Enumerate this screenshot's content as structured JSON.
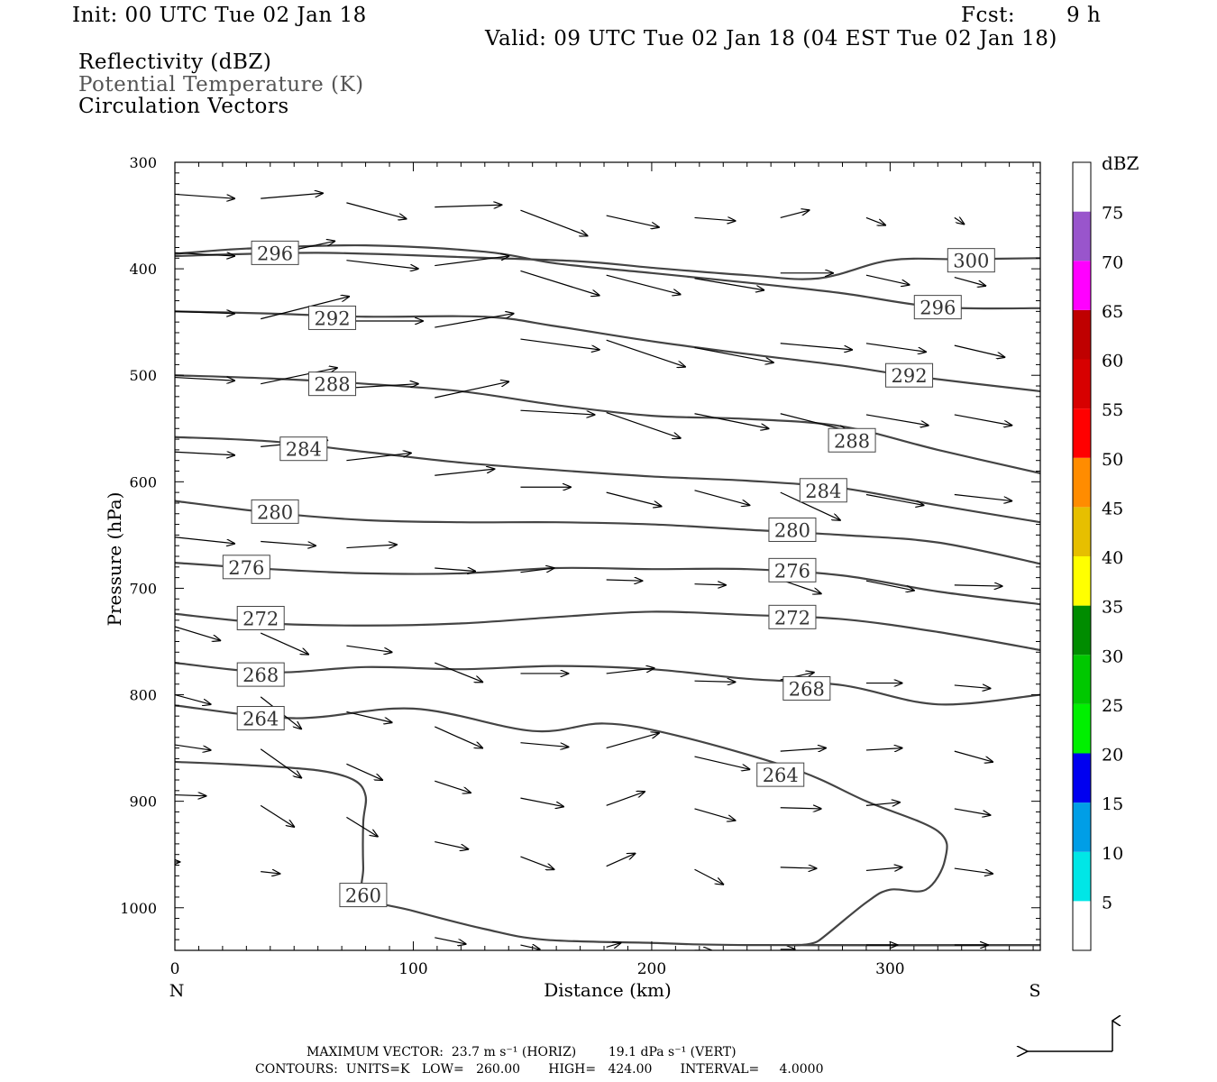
{
  "header": {
    "init": "Init: 00 UTC Tue 02 Jan 18",
    "fcst_label": "Fcst:",
    "fcst_value": "9 h",
    "valid": "Valid: 09 UTC Tue 02 Jan 18 (04 EST Tue 02 Jan 18)",
    "field1": "Reflectivity (dBZ)",
    "field2": "Potential Temperature (K)",
    "field3": "Circulation Vectors"
  },
  "chart_data": {
    "type": "cross-section",
    "xlabel": "Distance (km)",
    "ylabel": "Pressure (hPa)",
    "xlim": [
      0,
      363
    ],
    "ylim": [
      300,
      1040
    ],
    "x_ticks": [
      0,
      100,
      200,
      300
    ],
    "y_ticks": [
      300,
      400,
      500,
      600,
      700,
      800,
      900,
      1000
    ],
    "left_end": "N",
    "right_end": "S",
    "theta_contours": [
      {
        "value": 300,
        "x": [
          0,
          60,
          120,
          170,
          200,
          240,
          270,
          300,
          330,
          363
        ],
        "p": [
          388,
          385,
          389,
          393,
          399,
          406,
          409,
          392,
          391,
          390
        ],
        "labels": [
          {
            "x": 334,
            "p": 392
          }
        ]
      },
      {
        "value": 296,
        "x": [
          0,
          30,
          80,
          130,
          160,
          200,
          240,
          280,
          320,
          363
        ],
        "p": [
          386,
          381,
          378,
          384,
          395,
          404,
          413,
          423,
          436,
          437
        ],
        "labels": [
          {
            "x": 42,
            "p": 385
          },
          {
            "x": 320,
            "p": 436
          }
        ]
      },
      {
        "value": 292,
        "x": [
          0,
          40,
          80,
          130,
          160,
          200,
          240,
          280,
          310,
          363
        ],
        "p": [
          440,
          442,
          445,
          445,
          454,
          468,
          480,
          491,
          501,
          515
        ],
        "labels": [
          {
            "x": 66,
            "p": 446
          },
          {
            "x": 308,
            "p": 500
          }
        ]
      },
      {
        "value": 288,
        "x": [
          0,
          40,
          80,
          120,
          160,
          200,
          240,
          280,
          320,
          363
        ],
        "p": [
          500,
          503,
          508,
          515,
          528,
          538,
          541,
          548,
          570,
          592
        ],
        "labels": [
          {
            "x": 66,
            "p": 508
          },
          {
            "x": 284,
            "p": 561
          }
        ]
      },
      {
        "value": 284,
        "x": [
          0,
          40,
          80,
          120,
          160,
          200,
          240,
          280,
          320,
          363
        ],
        "p": [
          558,
          562,
          572,
          582,
          589,
          595,
          599,
          606,
          622,
          638
        ],
        "labels": [
          {
            "x": 54,
            "p": 569
          },
          {
            "x": 272,
            "p": 608
          }
        ]
      },
      {
        "value": 280,
        "x": [
          0,
          40,
          80,
          120,
          160,
          200,
          240,
          280,
          320,
          363
        ],
        "p": [
          618,
          629,
          636,
          638,
          638,
          640,
          645,
          650,
          657,
          677
        ],
        "labels": [
          {
            "x": 42,
            "p": 628
          },
          {
            "x": 259,
            "p": 645
          }
        ]
      },
      {
        "value": 276,
        "x": [
          0,
          40,
          80,
          120,
          160,
          200,
          240,
          280,
          320,
          363
        ],
        "p": [
          676,
          682,
          686,
          686,
          681,
          682,
          682,
          688,
          703,
          715
        ],
        "labels": [
          {
            "x": 30,
            "p": 680
          },
          {
            "x": 259,
            "p": 683
          }
        ]
      },
      {
        "value": 272,
        "x": [
          0,
          40,
          80,
          120,
          160,
          200,
          240,
          280,
          320,
          363
        ],
        "p": [
          724,
          733,
          735,
          733,
          727,
          722,
          725,
          729,
          741,
          758
        ],
        "labels": [
          {
            "x": 36,
            "p": 728
          },
          {
            "x": 259,
            "p": 727
          }
        ]
      },
      {
        "value": 268,
        "x": [
          0,
          40,
          80,
          120,
          160,
          200,
          240,
          280,
          320,
          363
        ],
        "p": [
          770,
          779,
          774,
          776,
          773,
          776,
          785,
          791,
          809,
          800
        ],
        "labels": [
          {
            "x": 36,
            "p": 781
          },
          {
            "x": 265,
            "p": 794
          }
        ]
      },
      {
        "value": 264,
        "x": [
          0,
          50,
          100,
          150,
          180,
          210,
          260,
          290,
          320,
          323,
          315,
          300,
          290,
          270,
          265,
          363
        ],
        "p": [
          810,
          822,
          813,
          834,
          827,
          838,
          870,
          900,
          928,
          955,
          983,
          983,
          995,
          1031,
          1035,
          1035
        ],
        "labels": [
          {
            "x": 36,
            "p": 822
          },
          {
            "x": 254,
            "p": 875
          }
        ]
      },
      {
        "value": 260,
        "x": [
          0,
          30,
          60,
          75,
          80,
          79,
          79,
          80,
          100,
          130,
          155,
          200,
          240,
          363
        ],
        "p": [
          863,
          866,
          871,
          880,
          895,
          920,
          962,
          990,
          1003,
          1020,
          1030,
          1033,
          1035,
          1035
        ],
        "labels": [
          {
            "x": 79,
            "p": 988
          }
        ]
      }
    ],
    "vectors": [
      {
        "x": 0,
        "p": 330,
        "dx": 25,
        "dp": 4
      },
      {
        "x": 36,
        "p": 334,
        "dx": 26,
        "dp": -5
      },
      {
        "x": 72,
        "p": 338,
        "dx": 25,
        "dp": 15
      },
      {
        "x": 109,
        "p": 342,
        "dx": 28,
        "dp": -2
      },
      {
        "x": 145,
        "p": 345,
        "dx": 28,
        "dp": 24
      },
      {
        "x": 181,
        "p": 350,
        "dx": 22,
        "dp": 11
      },
      {
        "x": 218,
        "p": 352,
        "dx": 17,
        "dp": 3
      },
      {
        "x": 254,
        "p": 352,
        "dx": 12,
        "dp": -7
      },
      {
        "x": 290,
        "p": 352,
        "dx": 8,
        "dp": 7
      },
      {
        "x": 327,
        "p": 352,
        "dx": 4,
        "dp": 6
      },
      {
        "x": 0,
        "p": 385,
        "dx": 25,
        "dp": 3
      },
      {
        "x": 36,
        "p": 389,
        "dx": 31,
        "dp": -15
      },
      {
        "x": 72,
        "p": 392,
        "dx": 30,
        "dp": 8
      },
      {
        "x": 109,
        "p": 397,
        "dx": 31,
        "dp": -9
      },
      {
        "x": 145,
        "p": 402,
        "dx": 33,
        "dp": 23
      },
      {
        "x": 181,
        "p": 406,
        "dx": 31,
        "dp": 18
      },
      {
        "x": 218,
        "p": 409,
        "dx": 29,
        "dp": 11
      },
      {
        "x": 254,
        "p": 404,
        "dx": 22,
        "dp": 0
      },
      {
        "x": 290,
        "p": 406,
        "dx": 18,
        "dp": 9
      },
      {
        "x": 327,
        "p": 408,
        "dx": 13,
        "dp": 8
      },
      {
        "x": 0,
        "p": 440,
        "dx": 25,
        "dp": 2
      },
      {
        "x": 36,
        "p": 447,
        "dx": 37,
        "dp": -21
      },
      {
        "x": 72,
        "p": 449,
        "dx": 32,
        "dp": 0
      },
      {
        "x": 109,
        "p": 455,
        "dx": 33,
        "dp": -13
      },
      {
        "x": 145,
        "p": 466,
        "dx": 33,
        "dp": 10
      },
      {
        "x": 181,
        "p": 467,
        "dx": 33,
        "dp": 25
      },
      {
        "x": 218,
        "p": 474,
        "dx": 33,
        "dp": 14
      },
      {
        "x": 254,
        "p": 470,
        "dx": 30,
        "dp": 6
      },
      {
        "x": 290,
        "p": 470,
        "dx": 25,
        "dp": 8
      },
      {
        "x": 327,
        "p": 472,
        "dx": 21,
        "dp": 11
      },
      {
        "x": 0,
        "p": 502,
        "dx": 25,
        "dp": 3
      },
      {
        "x": 36,
        "p": 508,
        "dx": 32,
        "dp": -15
      },
      {
        "x": 72,
        "p": 512,
        "dx": 30,
        "dp": -4
      },
      {
        "x": 109,
        "p": 521,
        "dx": 31,
        "dp": -15
      },
      {
        "x": 145,
        "p": 533,
        "dx": 31,
        "dp": 4
      },
      {
        "x": 181,
        "p": 535,
        "dx": 31,
        "dp": 24
      },
      {
        "x": 218,
        "p": 536,
        "dx": 31,
        "dp": 14
      },
      {
        "x": 254,
        "p": 536,
        "dx": 28,
        "dp": 16
      },
      {
        "x": 290,
        "p": 537,
        "dx": 26,
        "dp": 10
      },
      {
        "x": 327,
        "p": 537,
        "dx": 24,
        "dp": 10
      },
      {
        "x": 0,
        "p": 572,
        "dx": 25,
        "dp": 3
      },
      {
        "x": 36,
        "p": 567,
        "dx": 28,
        "dp": -6
      },
      {
        "x": 72,
        "p": 580,
        "dx": 27,
        "dp": -7
      },
      {
        "x": 109,
        "p": 594,
        "dx": 25,
        "dp": -6
      },
      {
        "x": 145,
        "p": 605,
        "dx": 21,
        "dp": 0
      },
      {
        "x": 181,
        "p": 610,
        "dx": 23,
        "dp": 13
      },
      {
        "x": 218,
        "p": 608,
        "dx": 23,
        "dp": 14
      },
      {
        "x": 254,
        "p": 610,
        "dx": 25,
        "dp": 26
      },
      {
        "x": 290,
        "p": 612,
        "dx": 24,
        "dp": 10
      },
      {
        "x": 327,
        "p": 612,
        "dx": 24,
        "dp": 6
      },
      {
        "x": 0,
        "p": 652,
        "dx": 25,
        "dp": 6
      },
      {
        "x": 36,
        "p": 656,
        "dx": 23,
        "dp": 4
      },
      {
        "x": 72,
        "p": 662,
        "dx": 21,
        "dp": -3
      },
      {
        "x": 109,
        "p": 681,
        "dx": 17,
        "dp": 3
      },
      {
        "x": 145,
        "p": 685,
        "dx": 14,
        "dp": -4
      },
      {
        "x": 181,
        "p": 692,
        "dx": 15,
        "dp": 1
      },
      {
        "x": 218,
        "p": 696,
        "dx": 13,
        "dp": 1
      },
      {
        "x": 254,
        "p": 692,
        "dx": 17,
        "dp": 13
      },
      {
        "x": 290,
        "p": 693,
        "dx": 20,
        "dp": 9
      },
      {
        "x": 327,
        "p": 697,
        "dx": 20,
        "dp": 1
      },
      {
        "x": 0,
        "p": 736,
        "dx": 19,
        "dp": 13
      },
      {
        "x": 36,
        "p": 742,
        "dx": 20,
        "dp": 20
      },
      {
        "x": 72,
        "p": 754,
        "dx": 19,
        "dp": 6
      },
      {
        "x": 109,
        "p": 770,
        "dx": 20,
        "dp": 18
      },
      {
        "x": 145,
        "p": 780,
        "dx": 20,
        "dp": 0
      },
      {
        "x": 181,
        "p": 780,
        "dx": 20,
        "dp": -5
      },
      {
        "x": 218,
        "p": 787,
        "dx": 17,
        "dp": 1
      },
      {
        "x": 254,
        "p": 786,
        "dx": 14,
        "dp": -7
      },
      {
        "x": 290,
        "p": 789,
        "dx": 15,
        "dp": 0
      },
      {
        "x": 327,
        "p": 791,
        "dx": 15,
        "dp": 3
      },
      {
        "x": 0,
        "p": 800,
        "dx": 15,
        "dp": 9
      },
      {
        "x": 36,
        "p": 802,
        "dx": 17,
        "dp": 30
      },
      {
        "x": 72,
        "p": 816,
        "dx": 19,
        "dp": 10
      },
      {
        "x": 109,
        "p": 830,
        "dx": 20,
        "dp": 20
      },
      {
        "x": 145,
        "p": 845,
        "dx": 20,
        "dp": 4
      },
      {
        "x": 181,
        "p": 850,
        "dx": 22,
        "dp": -14
      },
      {
        "x": 218,
        "p": 858,
        "dx": 23,
        "dp": 12
      },
      {
        "x": 254,
        "p": 853,
        "dx": 19,
        "dp": -3
      },
      {
        "x": 290,
        "p": 852,
        "dx": 15,
        "dp": -2
      },
      {
        "x": 327,
        "p": 853,
        "dx": 16,
        "dp": 10
      },
      {
        "x": 0,
        "p": 847,
        "dx": 15,
        "dp": 5
      },
      {
        "x": 36,
        "p": 851,
        "dx": 17,
        "dp": 27
      },
      {
        "x": 72,
        "p": 865,
        "dx": 15,
        "dp": 15
      },
      {
        "x": 109,
        "p": 881,
        "dx": 15,
        "dp": 11
      },
      {
        "x": 145,
        "p": 897,
        "dx": 18,
        "dp": 8
      },
      {
        "x": 181,
        "p": 904,
        "dx": 16,
        "dp": -13
      },
      {
        "x": 218,
        "p": 907,
        "dx": 17,
        "dp": 11
      },
      {
        "x": 254,
        "p": 906,
        "dx": 17,
        "dp": 1
      },
      {
        "x": 290,
        "p": 904,
        "dx": 14,
        "dp": -3
      },
      {
        "x": 327,
        "p": 907,
        "dx": 15,
        "dp": 6
      },
      {
        "x": 0,
        "p": 894,
        "dx": 13,
        "dp": 1
      },
      {
        "x": 36,
        "p": 904,
        "dx": 14,
        "dp": 20
      },
      {
        "x": 72,
        "p": 915,
        "dx": 13,
        "dp": 18
      },
      {
        "x": 109,
        "p": 938,
        "dx": 14,
        "dp": 7
      },
      {
        "x": 145,
        "p": 952,
        "dx": 14,
        "dp": 12
      },
      {
        "x": 181,
        "p": 961,
        "dx": 12,
        "dp": -12
      },
      {
        "x": 218,
        "p": 964,
        "dx": 12,
        "dp": 14
      },
      {
        "x": 254,
        "p": 962,
        "dx": 15,
        "dp": 1
      },
      {
        "x": 290,
        "p": 965,
        "dx": 15,
        "dp": -3
      },
      {
        "x": 327,
        "p": 963,
        "dx": 16,
        "dp": 5
      },
      {
        "x": 0,
        "p": 957,
        "dx": 2,
        "dp": 0
      },
      {
        "x": 36,
        "p": 966,
        "dx": 8,
        "dp": 2
      },
      {
        "x": 109,
        "p": 1028,
        "dx": 13,
        "dp": 6
      },
      {
        "x": 145,
        "p": 1035,
        "dx": 8,
        "dp": 4
      },
      {
        "x": 181,
        "p": 1037,
        "dx": 6,
        "dp": -4
      },
      {
        "x": 218,
        "p": 1040,
        "dx": 7,
        "dp": 0
      },
      {
        "x": 254,
        "p": 1039,
        "dx": 6,
        "dp": 0
      },
      {
        "x": 290,
        "p": 1035,
        "dx": 13,
        "dp": 0
      },
      {
        "x": 327,
        "p": 1035,
        "dx": 14,
        "dp": 0
      }
    ],
    "colorbar": {
      "unit": "dBZ",
      "levels": [
        "5",
        "10",
        "15",
        "20",
        "25",
        "30",
        "35",
        "40",
        "45",
        "50",
        "55",
        "60",
        "65",
        "70",
        "75"
      ],
      "colors": [
        "#ffffff",
        "#00e6e6",
        "#009ee6",
        "#0000f0",
        "#00f000",
        "#00c800",
        "#008c00",
        "#ffff00",
        "#e6bf00",
        "#ff8c00",
        "#ff0000",
        "#d70000",
        "#bf0000",
        "#ff00ff",
        "#9955cc",
        "#ffffff"
      ]
    }
  },
  "footer": {
    "max_vector": "MAXIMUM VECTOR:  23.7 m s⁻¹ (HORIZ)        19.1 dPa s⁻¹ (VERT)",
    "contours": "CONTOURS:  UNITS=K   LOW=   260.00       HIGH=   424.00       INTERVAL=     4.0000"
  }
}
